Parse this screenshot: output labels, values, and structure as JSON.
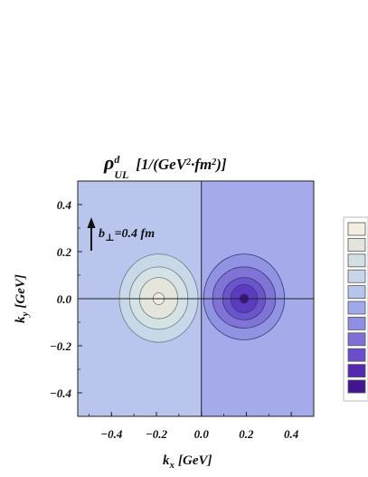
{
  "chart_data": {
    "type": "heatmap",
    "title": {
      "main": "ρ",
      "sup": "d",
      "sub": "UL",
      "units_pre": "[1/(GeV",
      "units_sq1": "2",
      "units_mid": "·fm",
      "units_sq2": "2",
      "units_post": ")]"
    },
    "xlabel": {
      "var": "k",
      "sub": "x",
      "unit": "[GeV]"
    },
    "ylabel": {
      "var": "k",
      "sub": "y",
      "unit": "[GeV]"
    },
    "xlim": [
      -0.55,
      0.5
    ],
    "ylim": [
      -0.5,
      0.5
    ],
    "x_ticks": [
      "−0.4",
      "−0.2",
      "0.0",
      "0.2",
      "0.4"
    ],
    "x_tick_values": [
      -0.4,
      -0.2,
      0.0,
      0.2,
      0.4
    ],
    "y_ticks": [
      "0.4",
      "0.2",
      "0.0",
      "−0.2",
      "−0.4"
    ],
    "y_tick_values": [
      0.4,
      0.2,
      0.0,
      -0.2,
      -0.4
    ],
    "annotation": {
      "var": "b",
      "sub": "⊥",
      "value": "=0.4 fm"
    },
    "contour_centers": {
      "negative": [
        -0.19,
        0.0
      ],
      "positive": [
        0.19,
        0.0
      ]
    },
    "levels": [
      -4,
      -3,
      -2,
      -1,
      0,
      1,
      2,
      3,
      4
    ],
    "colorbar": {
      "colors": [
        "#f4ede2",
        "#e3e4dc",
        "#d3e0e3",
        "#c7d7e9",
        "#b7c4ec",
        "#a2a9ea",
        "#8f8ee2",
        "#7c6fd5",
        "#6a4ecb",
        "#5528b1",
        "#421592"
      ]
    }
  }
}
